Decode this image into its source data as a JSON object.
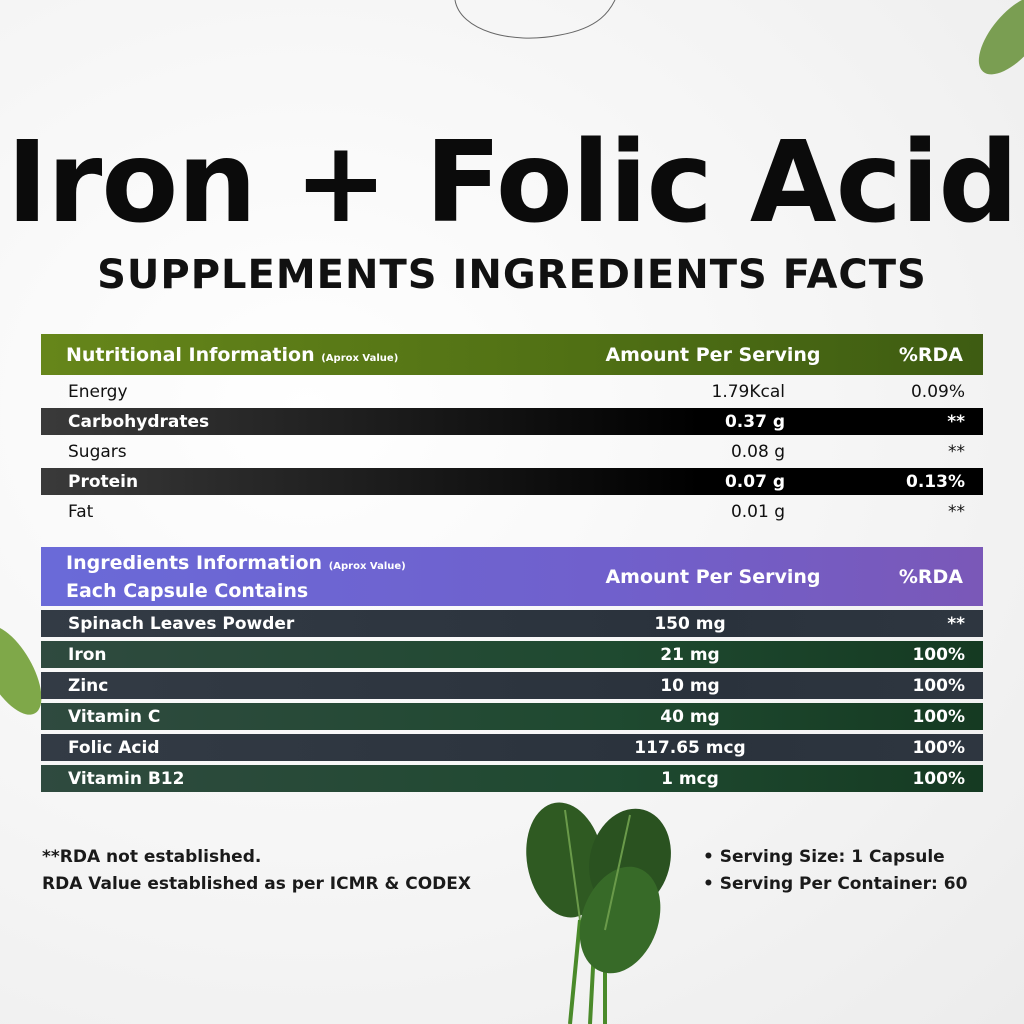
{
  "title": "Iron + Folic Acid",
  "subtitle": "SUPPLEMENTS INGREDIENTS FACTS",
  "colors": {
    "nutrition_header": "#5a7a14",
    "ingredients_header": "#7060d0",
    "row_slate": "#2d3540",
    "row_green": "#1f4a30"
  },
  "nutrition": {
    "header": {
      "label": "Nutritional Information",
      "note": "(Aprox Value)",
      "amount": "Amount Per Serving",
      "rda": "%RDA"
    },
    "rows": [
      {
        "name": "Energy",
        "amount": "1.79Kcal",
        "rda": "0.09%"
      },
      {
        "name": "Carbohydrates",
        "amount": "0.37 g",
        "rda": "**"
      },
      {
        "name": "Sugars",
        "amount": "0.08 g",
        "rda": "**"
      },
      {
        "name": "Protein",
        "amount": "0.07 g",
        "rda": "0.13%"
      },
      {
        "name": "Fat",
        "amount": "0.01 g",
        "rda": "**"
      }
    ]
  },
  "ingredients": {
    "header": {
      "label": "Ingredients Information",
      "note": "(Aprox Value)",
      "label2": "Each Capsule Contains",
      "amount": "Amount Per Serving",
      "rda": "%RDA"
    },
    "rows": [
      {
        "name": "Spinach Leaves Powder",
        "amount": "150 mg",
        "rda": "**"
      },
      {
        "name": "Iron",
        "amount": "21 mg",
        "rda": "100%"
      },
      {
        "name": "Zinc",
        "amount": "10 mg",
        "rda": "100%"
      },
      {
        "name": "Vitamin C",
        "amount": "40 mg",
        "rda": "100%"
      },
      {
        "name": "Folic Acid",
        "amount": "117.65 mcg",
        "rda": "100%"
      },
      {
        "name": "Vitamin B12",
        "amount": "1 mcg",
        "rda": "100%"
      }
    ]
  },
  "footer": {
    "note1": "**RDA not established.",
    "note2": "RDA Value established as per ICMR & CODEX",
    "serving_size": "• Serving Size: 1 Capsule",
    "serving_per_container": "• Serving Per Container: 60"
  }
}
